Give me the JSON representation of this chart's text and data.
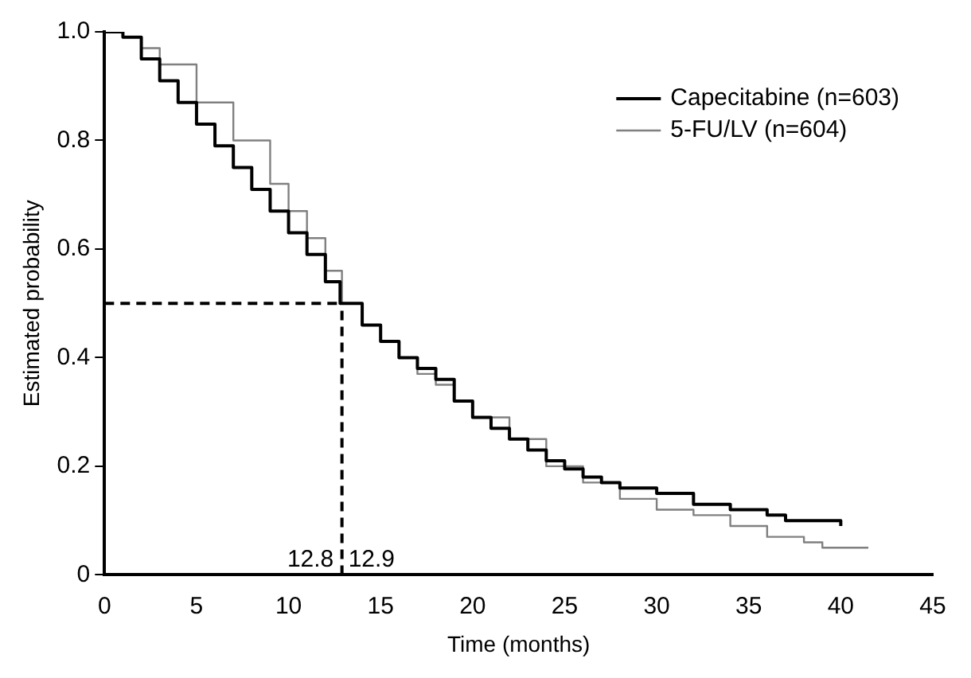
{
  "chart_data": {
    "type": "step",
    "xlabel": "Time (months)",
    "ylabel": "Estimated probability",
    "xlim": [
      0,
      45
    ],
    "xticks": [
      0,
      5,
      10,
      15,
      20,
      25,
      30,
      35,
      40,
      45
    ],
    "ylim": [
      0,
      1
    ],
    "yticks": [
      0,
      0.2,
      0.4,
      0.6,
      0.8,
      {
        "value": 1,
        "label": "1.0"
      }
    ],
    "grid": false,
    "legend": "top right",
    "line_style": "solid",
    "marker": "none",
    "series": [
      {
        "name": "Capecitabine (n=603)",
        "color": "#000000",
        "x": [
          0,
          1,
          2,
          3,
          4,
          5,
          6,
          7,
          8,
          9,
          10,
          11,
          12,
          12.8,
          14,
          15,
          16,
          17,
          18,
          19,
          20,
          21,
          22,
          23,
          24,
          25,
          26,
          27,
          28,
          30,
          32,
          34,
          36,
          37,
          40
        ],
        "values": [
          1,
          0.99,
          0.95,
          0.91,
          0.87,
          0.83,
          0.79,
          0.75,
          0.71,
          0.67,
          0.63,
          0.59,
          0.54,
          0.5,
          0.46,
          0.43,
          0.4,
          0.38,
          0.36,
          0.32,
          0.29,
          0.27,
          0.25,
          0.23,
          0.21,
          0.195,
          0.18,
          0.17,
          0.16,
          0.15,
          0.13,
          0.12,
          0.11,
          0.1,
          0.09
        ]
      },
      {
        "name": "5-FU/LV (n=604)",
        "color": "#808080",
        "x": [
          0,
          1,
          2,
          3,
          5,
          7,
          9,
          10,
          11,
          12,
          12.9,
          14,
          15,
          16,
          17,
          18,
          19,
          20,
          22,
          24,
          26,
          28,
          30,
          32,
          34,
          36,
          38,
          39,
          41.5
        ],
        "values": [
          1,
          0.99,
          0.97,
          0.94,
          0.87,
          0.8,
          0.72,
          0.67,
          0.62,
          0.56,
          0.5,
          0.46,
          0.43,
          0.4,
          0.37,
          0.35,
          0.32,
          0.29,
          0.25,
          0.2,
          0.17,
          0.14,
          0.12,
          0.11,
          0.09,
          0.07,
          0.06,
          0.05,
          0.05
        ]
      }
    ],
    "ref_lines": [
      {
        "axis": "y",
        "value": 0.5,
        "line_style": "dashed",
        "color": "#000000"
      },
      {
        "axis": "x",
        "value": 12.9,
        "label": "12.9",
        "line_style": "dashed",
        "color": "#000000"
      }
    ],
    "annotations": [
      {
        "text": "12.8",
        "x": 12.8,
        "y": 0
      }
    ]
  }
}
